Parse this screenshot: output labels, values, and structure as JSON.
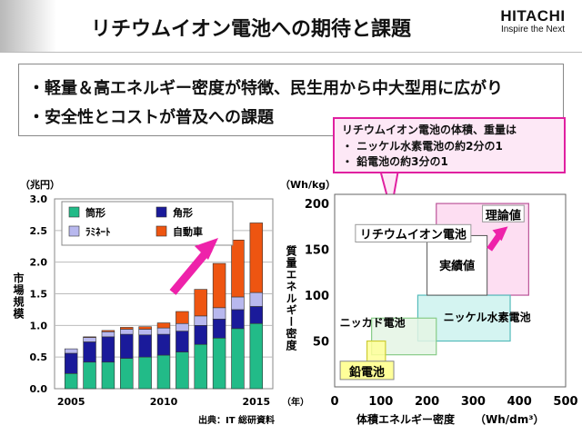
{
  "header": {
    "title": "リチウムイオン電池への期待と課題",
    "logo": "HITACHI",
    "tagline": "Inspire the Next"
  },
  "bullets": [
    "・軽量＆高エネルギー密度が特徴、民生用から中大型用に広がり",
    "・安全性とコストが普及への課題"
  ],
  "callout": [
    "リチウムイオン電池の体積、重量は",
    "・ ニッケル水素電池の約2分の1",
    "・ 鉛電池の約3分の1"
  ],
  "colors": {
    "tube": "#22bb88",
    "square": "#1a1a9a",
    "laminate": "#b8b8ee",
    "automotive": "#ee5511",
    "arrow": "#ee22aa",
    "liion_box": "#fdd8f0",
    "nimh_box": "#ccf2ee",
    "nicd_box": "#e4f5e4",
    "lead_box": "#ffff99"
  },
  "chart_data": [
    {
      "type": "bar",
      "stacked": true,
      "title": "",
      "ylabel": "市場規模",
      "yunit": "（兆円）",
      "xunit": "（年）",
      "ylim": [
        0,
        3.0
      ],
      "yticks": [
        "0.0",
        "0.5",
        "1.0",
        "1.5",
        "2.0",
        "2.5",
        "3.0"
      ],
      "xtick_labels": [
        "2005",
        "2010",
        "2015"
      ],
      "categories": [
        "2005",
        "2006",
        "2007",
        "2008",
        "2009",
        "2010",
        "2011",
        "2012",
        "2013",
        "2014",
        "2015"
      ],
      "series": [
        {
          "name": "筒形",
          "values": [
            0.24,
            0.42,
            0.42,
            0.48,
            0.5,
            0.53,
            0.58,
            0.7,
            0.8,
            0.95,
            1.03
          ]
        },
        {
          "name": "角形",
          "values": [
            0.32,
            0.32,
            0.4,
            0.38,
            0.35,
            0.33,
            0.33,
            0.3,
            0.3,
            0.3,
            0.27
          ]
        },
        {
          "name": "ﾗﾐﾈｰﾄ",
          "values": [
            0.07,
            0.07,
            0.08,
            0.08,
            0.09,
            0.1,
            0.12,
            0.15,
            0.18,
            0.2,
            0.22
          ]
        },
        {
          "name": "自動車",
          "values": [
            0.0,
            0.01,
            0.02,
            0.03,
            0.04,
            0.08,
            0.19,
            0.42,
            0.7,
            0.9,
            1.1
          ]
        }
      ],
      "source": "出典：IT 総研資料"
    },
    {
      "type": "scatter",
      "title": "",
      "xlabel": "体積エネルギー密度",
      "xunit": "（Wh/dm³）",
      "ylabel": "質量エネルギー密度",
      "yunit": "（Wh/kg）",
      "xlim": [
        0,
        500
      ],
      "ylim": [
        0,
        210
      ],
      "xticks": [
        "0",
        "100",
        "200",
        "300",
        "400",
        "500"
      ],
      "yticks": [
        "0",
        "50",
        "100",
        "150",
        "200"
      ],
      "regions": [
        {
          "name": "鉛電池",
          "x": [
            70,
            110
          ],
          "y": [
            25,
            50
          ]
        },
        {
          "name": "ニッカド電池",
          "x": [
            80,
            220
          ],
          "y": [
            35,
            75
          ]
        },
        {
          "name": "ニッケル水素電池",
          "x": [
            180,
            380
          ],
          "y": [
            50,
            100
          ]
        },
        {
          "name": "リチウムイオン電池 実績値",
          "x": [
            220,
            420
          ],
          "y": [
            100,
            200
          ]
        }
      ],
      "theory_label": "理論値",
      "liion_label": "リチウムイオン電池",
      "actual_label": "実績値"
    }
  ]
}
